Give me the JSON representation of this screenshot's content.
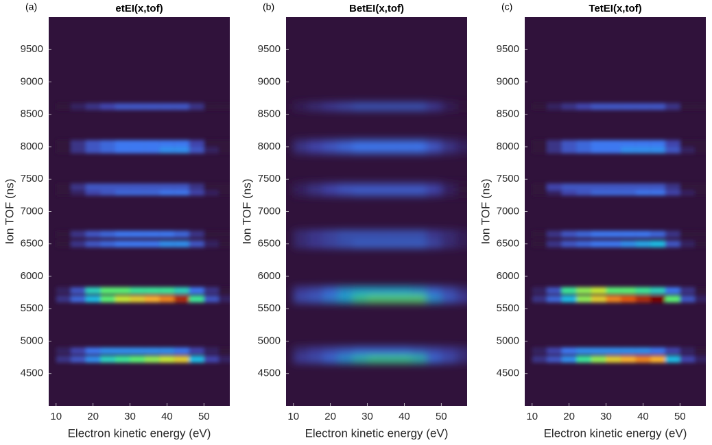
{
  "chart_data": [
    {
      "type": "heatmap",
      "panel": "(a)",
      "title": "etEI(x,tof)",
      "xlabel": "Electron kinetic energy (eV)",
      "ylabel": "Ion TOF (ns)",
      "colormap": "turbo",
      "smooth": 3,
      "xlim": [
        8,
        57
      ],
      "ylim": [
        4000,
        10000
      ],
      "xticks": [
        10,
        20,
        30,
        40,
        50
      ],
      "yticks": [
        4500,
        5000,
        5500,
        6000,
        6500,
        7000,
        7500,
        8000,
        8500,
        9000,
        9500
      ],
      "x": [
        12,
        16,
        20,
        24,
        28,
        32,
        36,
        40,
        44,
        48,
        52,
        56
      ],
      "y": [
        4720,
        4850,
        5650,
        5780,
        6500,
        6650,
        7300,
        7380,
        7950,
        8050,
        8620
      ],
      "z": [
        [
          0.1,
          0.2,
          0.35,
          0.5,
          0.55,
          0.6,
          0.65,
          0.7,
          0.75,
          0.45,
          0.15,
          0.05
        ],
        [
          0.05,
          0.15,
          0.3,
          0.35,
          0.35,
          0.35,
          0.35,
          0.35,
          0.3,
          0.15,
          0.05,
          0
        ],
        [
          0.1,
          0.25,
          0.45,
          0.6,
          0.7,
          0.75,
          0.8,
          0.85,
          0.95,
          0.55,
          0.2,
          0.05
        ],
        [
          0.05,
          0.2,
          0.5,
          0.6,
          0.6,
          0.55,
          0.55,
          0.55,
          0.5,
          0.3,
          0.1,
          0
        ],
        [
          0,
          0.1,
          0.2,
          0.25,
          0.3,
          0.3,
          0.3,
          0.35,
          0.35,
          0.2,
          0.05,
          0
        ],
        [
          0,
          0.1,
          0.2,
          0.25,
          0.3,
          0.3,
          0.3,
          0.3,
          0.25,
          0.1,
          0,
          0
        ],
        [
          0,
          0.05,
          0.15,
          0.2,
          0.25,
          0.25,
          0.25,
          0.3,
          0.3,
          0.15,
          0.05,
          0
        ],
        [
          0,
          0.1,
          0.2,
          0.2,
          0.2,
          0.2,
          0.2,
          0.2,
          0.2,
          0.1,
          0,
          0
        ],
        [
          0,
          0.1,
          0.2,
          0.25,
          0.3,
          0.3,
          0.3,
          0.35,
          0.35,
          0.2,
          0.05,
          0
        ],
        [
          0,
          0.1,
          0.2,
          0.25,
          0.3,
          0.3,
          0.3,
          0.3,
          0.3,
          0.15,
          0,
          0
        ],
        [
          0,
          0.05,
          0.1,
          0.15,
          0.2,
          0.2,
          0.2,
          0.2,
          0.2,
          0.1,
          0,
          0
        ]
      ]
    },
    {
      "type": "heatmap",
      "panel": "(b)",
      "title": "BetEI(x,tof)",
      "xlabel": "Electron kinetic energy (eV)",
      "ylabel": "Ion TOF (ns)",
      "colormap": "turbo",
      "smooth": 6,
      "xlim": [
        8,
        57
      ],
      "ylim": [
        4000,
        10000
      ],
      "xticks": [
        10,
        20,
        30,
        40,
        50
      ],
      "yticks": [
        4500,
        5000,
        5500,
        6000,
        6500,
        7000,
        7500,
        8000,
        8500,
        9000,
        9500
      ],
      "x": [
        12,
        16,
        20,
        24,
        28,
        32,
        36,
        40,
        44,
        48,
        52,
        56
      ],
      "y": [
        4720,
        4850,
        5650,
        5780,
        6500,
        6650,
        7300,
        7380,
        7950,
        8050,
        8620
      ],
      "z": [
        [
          0.15,
          0.2,
          0.3,
          0.4,
          0.5,
          0.55,
          0.55,
          0.55,
          0.5,
          0.3,
          0.2,
          0.1
        ],
        [
          0.1,
          0.15,
          0.2,
          0.25,
          0.3,
          0.3,
          0.3,
          0.3,
          0.25,
          0.2,
          0.15,
          0.1
        ],
        [
          0.2,
          0.25,
          0.35,
          0.45,
          0.55,
          0.6,
          0.6,
          0.6,
          0.6,
          0.4,
          0.25,
          0.15
        ],
        [
          0.15,
          0.2,
          0.3,
          0.4,
          0.45,
          0.45,
          0.45,
          0.45,
          0.4,
          0.3,
          0.2,
          0.1
        ],
        [
          0.1,
          0.15,
          0.2,
          0.25,
          0.3,
          0.3,
          0.3,
          0.3,
          0.3,
          0.2,
          0.1,
          0.05
        ],
        [
          0.1,
          0.15,
          0.2,
          0.25,
          0.25,
          0.25,
          0.25,
          0.25,
          0.25,
          0.15,
          0.1,
          0.05
        ],
        [
          0.05,
          0.1,
          0.15,
          0.2,
          0.25,
          0.25,
          0.25,
          0.25,
          0.25,
          0.15,
          0.05,
          0
        ],
        [
          0.05,
          0.1,
          0.15,
          0.2,
          0.2,
          0.2,
          0.2,
          0.2,
          0.2,
          0.15,
          0.05,
          0
        ],
        [
          0.1,
          0.15,
          0.2,
          0.25,
          0.3,
          0.3,
          0.3,
          0.3,
          0.3,
          0.2,
          0.1,
          0.05
        ],
        [
          0.1,
          0.15,
          0.2,
          0.25,
          0.3,
          0.3,
          0.3,
          0.3,
          0.3,
          0.2,
          0.1,
          0.05
        ],
        [
          0.05,
          0.1,
          0.15,
          0.2,
          0.25,
          0.25,
          0.25,
          0.25,
          0.25,
          0.15,
          0.05,
          0
        ]
      ]
    },
    {
      "type": "heatmap",
      "panel": "(c)",
      "title": "TetEI(x,tof)",
      "xlabel": "Electron kinetic energy (eV)",
      "ylabel": "Ion TOF (ns)",
      "colormap": "turbo",
      "smooth": 3,
      "xlim": [
        8,
        57
      ],
      "ylim": [
        4000,
        10000
      ],
      "xticks": [
        10,
        20,
        30,
        40,
        50
      ],
      "yticks": [
        4500,
        5000,
        5500,
        6000,
        6500,
        7000,
        7500,
        8000,
        8500,
        9000,
        9500
      ],
      "x": [
        12,
        16,
        20,
        24,
        28,
        32,
        36,
        40,
        44,
        48,
        52,
        56
      ],
      "y": [
        4720,
        4850,
        5650,
        5780,
        6500,
        6650,
        7300,
        7380,
        7950,
        8050,
        8620
      ],
      "z": [
        [
          0.1,
          0.2,
          0.35,
          0.55,
          0.65,
          0.75,
          0.8,
          0.85,
          0.8,
          0.45,
          0.15,
          0.05
        ],
        [
          0.05,
          0.15,
          0.3,
          0.35,
          0.35,
          0.35,
          0.35,
          0.35,
          0.3,
          0.15,
          0.05,
          0
        ],
        [
          0.1,
          0.25,
          0.45,
          0.65,
          0.75,
          0.85,
          0.9,
          0.95,
          1.0,
          0.6,
          0.2,
          0.05
        ],
        [
          0.05,
          0.2,
          0.55,
          0.65,
          0.7,
          0.6,
          0.6,
          0.55,
          0.5,
          0.3,
          0.1,
          0
        ],
        [
          0,
          0.1,
          0.2,
          0.25,
          0.3,
          0.3,
          0.35,
          0.4,
          0.45,
          0.2,
          0.05,
          0
        ],
        [
          0,
          0.1,
          0.2,
          0.25,
          0.3,
          0.3,
          0.3,
          0.3,
          0.25,
          0.1,
          0,
          0
        ],
        [
          0,
          0.05,
          0.15,
          0.2,
          0.25,
          0.25,
          0.25,
          0.3,
          0.3,
          0.15,
          0.05,
          0
        ],
        [
          0,
          0.15,
          0.2,
          0.2,
          0.2,
          0.2,
          0.2,
          0.2,
          0.2,
          0.1,
          0,
          0
        ],
        [
          0,
          0.1,
          0.2,
          0.25,
          0.3,
          0.3,
          0.35,
          0.35,
          0.35,
          0.2,
          0.05,
          0
        ],
        [
          0,
          0.1,
          0.2,
          0.25,
          0.3,
          0.3,
          0.3,
          0.3,
          0.3,
          0.15,
          0,
          0
        ],
        [
          0,
          0.05,
          0.1,
          0.15,
          0.2,
          0.2,
          0.2,
          0.2,
          0.2,
          0.1,
          0,
          0
        ]
      ]
    }
  ]
}
